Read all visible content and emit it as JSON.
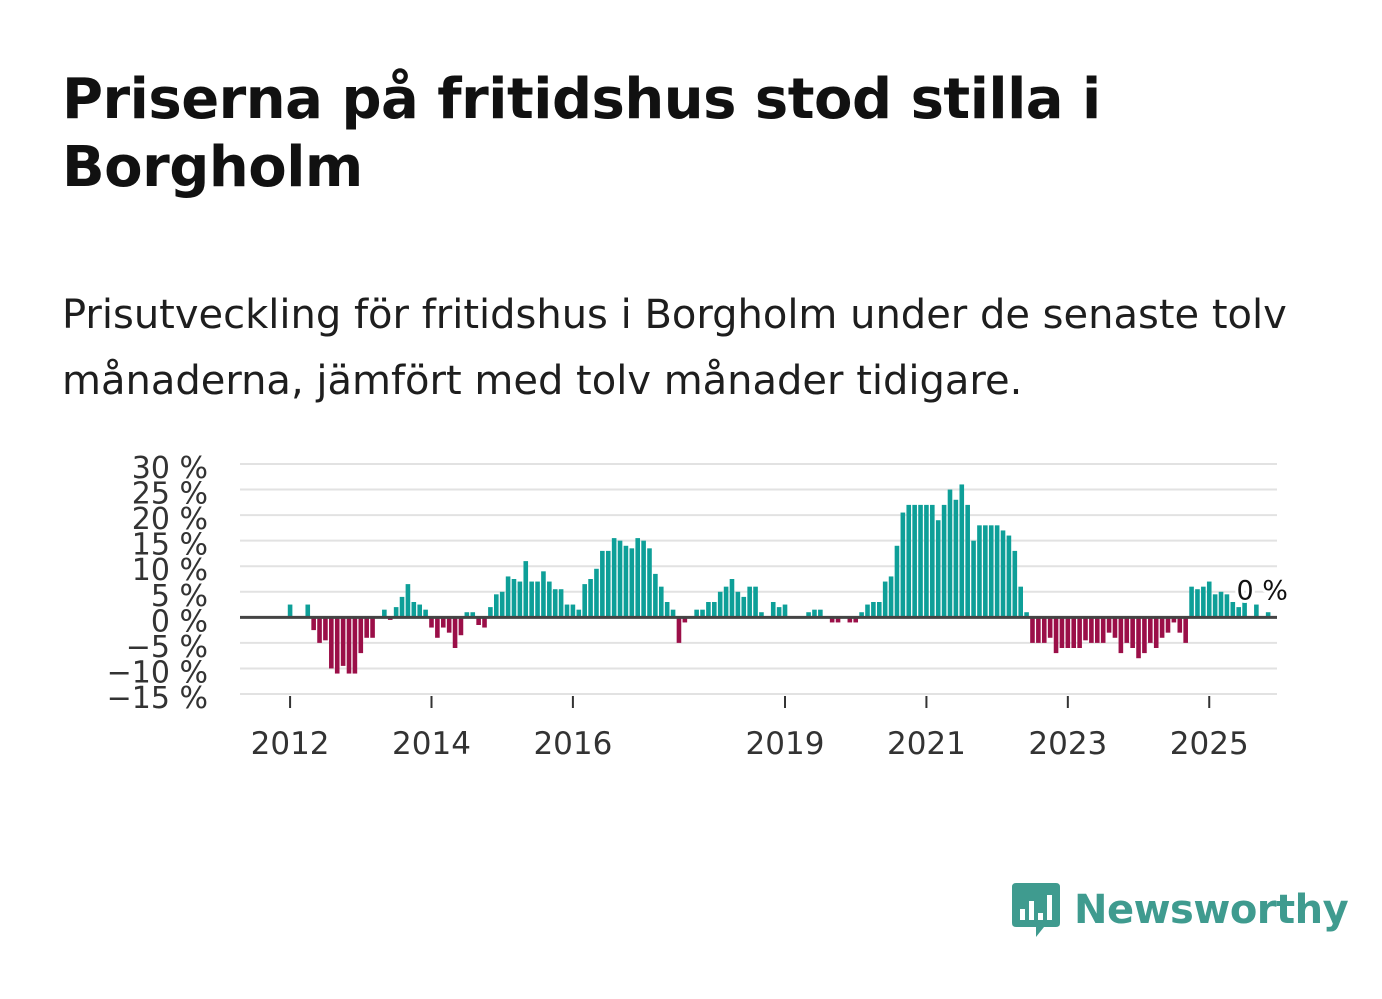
{
  "header": {
    "title": "Priserna på fritidshus stod stilla i Borgholm",
    "subtitle": "Prisutveckling för fritidshus i Borgholm under de senaste tolv månaderna, jämfört med tolv månader tidigare."
  },
  "brand": {
    "name": "Newsworthy",
    "icon": "newsworthy-logo-icon"
  },
  "colors": {
    "positive": "#0e9f98",
    "negative": "#9b0f48",
    "grid": "#e2e2e2",
    "zero": "#444444"
  },
  "chart_data": {
    "type": "bar",
    "title": "Priserna på fritidshus stod stilla i Borgholm",
    "xlabel": "",
    "ylabel": "",
    "ylim": [
      -15,
      30
    ],
    "yticks": [
      30,
      25,
      20,
      15,
      10,
      5,
      0,
      -5,
      -10,
      -15
    ],
    "ytick_labels": [
      "30 %",
      "25 %",
      "20 %",
      "15 %",
      "10 %",
      "5 %",
      "0 %",
      "−5 %",
      "−10 %",
      "−15 %"
    ],
    "xticks": [
      {
        "label": "2012",
        "index": 8
      },
      {
        "label": "2014",
        "index": 32
      },
      {
        "label": "2016",
        "index": 56
      },
      {
        "label": "2019",
        "index": 92
      },
      {
        "label": "2021",
        "index": 116
      },
      {
        "label": "2023",
        "index": 140
      },
      {
        "label": "2025",
        "index": 164
      }
    ],
    "start": "2011-01",
    "annotation": {
      "text": "0 %",
      "index": 173
    },
    "series": [
      {
        "name": "Prisutveckling (%)",
        "values": [
          0,
          0,
          0,
          0,
          0,
          0,
          0,
          0,
          2.5,
          0,
          0,
          2.5,
          -2.5,
          -5,
          -4.5,
          -10,
          -11,
          -9.5,
          -11,
          -11,
          -7,
          -4,
          -4,
          0,
          1.5,
          -0.5,
          2,
          4,
          6.5,
          3,
          2.5,
          1.5,
          -2,
          -4,
          -2,
          -3,
          -6,
          -3.5,
          1,
          1,
          -1.5,
          -2,
          2,
          4.5,
          5,
          8,
          7.5,
          7,
          11,
          7,
          7,
          9,
          7,
          5.5,
          5.5,
          2.5,
          2.5,
          1.5,
          6.5,
          7.5,
          9.5,
          13,
          13,
          15.5,
          15,
          14,
          13.5,
          15.5,
          15,
          13.5,
          8.5,
          6,
          3,
          1.5,
          -5,
          -1,
          0,
          1.5,
          1.5,
          3,
          3,
          5,
          6,
          7.5,
          5,
          4,
          6,
          6,
          1,
          0,
          3,
          2,
          2.5,
          0,
          0,
          0,
          1,
          1.5,
          1.5,
          0,
          -1,
          -1,
          0,
          -1,
          -1,
          1,
          2.5,
          3,
          3,
          7,
          8,
          14,
          20.5,
          22,
          22,
          22,
          22,
          22,
          19,
          22,
          25,
          23,
          26,
          22,
          15,
          18,
          18,
          18,
          18,
          17,
          16,
          13,
          6,
          1,
          -5,
          -5,
          -5,
          -4,
          -7,
          -6,
          -6,
          -6,
          -6,
          -4.5,
          -5,
          -5,
          -5,
          -3,
          -4,
          -7,
          -5,
          -6,
          -8,
          -7,
          -5,
          -6,
          -4,
          -3,
          -1,
          -3,
          -5,
          6,
          5.5,
          6,
          7,
          4.5,
          5,
          4.5,
          3,
          2,
          3,
          0,
          2.5,
          0,
          1,
          0
        ]
      }
    ]
  }
}
